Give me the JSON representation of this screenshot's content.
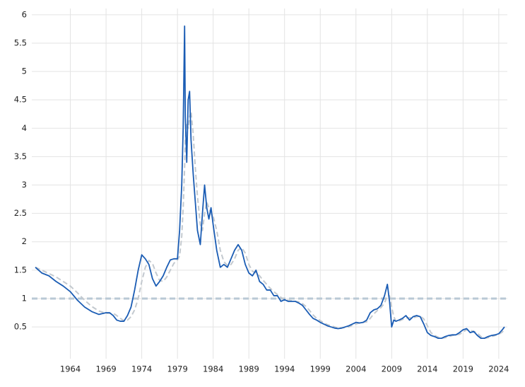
{
  "chart_data": {
    "type": "line",
    "x": [
      1959.1,
      1960,
      1961,
      1962,
      1963,
      1964,
      1965,
      1966,
      1967,
      1968,
      1969,
      1969.5,
      1970,
      1970.5,
      1971,
      1971.5,
      1972,
      1972.5,
      1973,
      1973.5,
      1974,
      1974.5,
      1975,
      1975.5,
      1976,
      1976.5,
      1977,
      1977.5,
      1978,
      1978.5,
      1979,
      1979.3,
      1979.6,
      1979.8,
      1980.0,
      1980.1,
      1980.3,
      1980.5,
      1980.7,
      1980.9,
      1981.2,
      1981.5,
      1981.8,
      1982.2,
      1982.5,
      1982.8,
      1983.1,
      1983.4,
      1983.7,
      1984,
      1984.5,
      1985,
      1985.5,
      1986,
      1986.5,
      1987,
      1987.5,
      1988,
      1988.5,
      1989,
      1989.5,
      1990,
      1990.5,
      1991,
      1991.5,
      1992,
      1992.5,
      1993,
      1993.5,
      1994,
      1994.5,
      1995,
      1995.5,
      1996,
      1996.5,
      1997,
      1997.5,
      1998,
      1998.5,
      1999,
      1999.5,
      2000,
      2000.5,
      2001,
      2001.5,
      2002,
      2002.5,
      2003,
      2003.5,
      2004,
      2004.5,
      2005,
      2005.5,
      2006,
      2006.5,
      2007,
      2007.5,
      2008,
      2008.4,
      2008.7,
      2009,
      2009.3,
      2009.6,
      2010,
      2010.5,
      2011,
      2011.5,
      2012,
      2012.5,
      2013,
      2013.5,
      2014,
      2014.5,
      2015,
      2015.5,
      2016,
      2016.5,
      2017,
      2017.5,
      2018,
      2018.5,
      2019,
      2019.5,
      2020,
      2020.5,
      2021,
      2021.5,
      2022,
      2022.5,
      2023,
      2023.5,
      2024,
      2024.5,
      2024.8
    ],
    "series": [
      {
        "color": "#c3c9cf",
        "dashed": true,
        "values": [
          1.55,
          1.5,
          1.44,
          1.38,
          1.3,
          1.22,
          1.1,
          0.97,
          0.86,
          0.78,
          0.74,
          0.74,
          0.74,
          0.7,
          0.65,
          0.61,
          0.62,
          0.68,
          0.8,
          1.0,
          1.3,
          1.55,
          1.67,
          1.62,
          1.45,
          1.32,
          1.3,
          1.38,
          1.5,
          1.62,
          1.68,
          1.75,
          2.1,
          2.6,
          3.3,
          3.8,
          4.1,
          4.0,
          4.2,
          4.3,
          3.9,
          3.3,
          2.8,
          2.3,
          2.2,
          2.5,
          2.7,
          2.6,
          2.5,
          2.45,
          2.2,
          1.85,
          1.65,
          1.58,
          1.6,
          1.7,
          1.85,
          1.9,
          1.8,
          1.6,
          1.48,
          1.45,
          1.4,
          1.32,
          1.25,
          1.18,
          1.12,
          1.07,
          1.02,
          0.98,
          0.97,
          0.96,
          0.95,
          0.94,
          0.91,
          0.86,
          0.79,
          0.71,
          0.65,
          0.61,
          0.57,
          0.54,
          0.52,
          0.5,
          0.48,
          0.48,
          0.49,
          0.5,
          0.53,
          0.55,
          0.57,
          0.58,
          0.59,
          0.65,
          0.73,
          0.79,
          0.84,
          0.92,
          1.05,
          1.05,
          0.85,
          0.68,
          0.6,
          0.6,
          0.63,
          0.66,
          0.66,
          0.66,
          0.68,
          0.69,
          0.64,
          0.52,
          0.4,
          0.35,
          0.32,
          0.3,
          0.31,
          0.33,
          0.35,
          0.36,
          0.37,
          0.41,
          0.45,
          0.44,
          0.42,
          0.39,
          0.33,
          0.3,
          0.31,
          0.33,
          0.35,
          0.37,
          0.41,
          0.46
        ]
      },
      {
        "color": "#1a5cb4",
        "dashed": false,
        "values": [
          1.55,
          1.45,
          1.4,
          1.3,
          1.22,
          1.12,
          0.97,
          0.85,
          0.77,
          0.72,
          0.75,
          0.75,
          0.7,
          0.62,
          0.6,
          0.6,
          0.7,
          0.85,
          1.15,
          1.5,
          1.77,
          1.7,
          1.6,
          1.35,
          1.22,
          1.3,
          1.4,
          1.55,
          1.68,
          1.7,
          1.7,
          2.2,
          3.0,
          4.0,
          5.8,
          4.2,
          3.4,
          4.5,
          4.65,
          3.8,
          3.2,
          2.7,
          2.2,
          1.95,
          2.5,
          3.0,
          2.6,
          2.4,
          2.6,
          2.3,
          1.85,
          1.55,
          1.6,
          1.55,
          1.7,
          1.85,
          1.95,
          1.85,
          1.6,
          1.45,
          1.4,
          1.5,
          1.3,
          1.25,
          1.15,
          1.15,
          1.05,
          1.05,
          0.95,
          0.98,
          0.95,
          0.95,
          0.95,
          0.92,
          0.88,
          0.8,
          0.72,
          0.65,
          0.62,
          0.58,
          0.55,
          0.52,
          0.5,
          0.48,
          0.47,
          0.48,
          0.5,
          0.52,
          0.55,
          0.58,
          0.57,
          0.58,
          0.62,
          0.75,
          0.8,
          0.82,
          0.88,
          1.05,
          1.25,
          0.95,
          0.5,
          0.62,
          0.6,
          0.62,
          0.65,
          0.7,
          0.62,
          0.68,
          0.7,
          0.68,
          0.55,
          0.4,
          0.35,
          0.33,
          0.3,
          0.3,
          0.33,
          0.35,
          0.36,
          0.36,
          0.4,
          0.45,
          0.47,
          0.4,
          0.42,
          0.35,
          0.3,
          0.3,
          0.33,
          0.35,
          0.36,
          0.38,
          0.45,
          0.5
        ]
      }
    ],
    "reference_line": {
      "value": 1,
      "color": "#b9c9d5"
    },
    "xlim": [
      1958.6,
      2025.2
    ],
    "xticks": [
      1964,
      1969,
      1974,
      1979,
      1984,
      1989,
      1994,
      1999,
      2004,
      2009,
      2014,
      2019,
      2024
    ],
    "ylim": [
      -0.06,
      6.11
    ],
    "yticks": [
      0.5,
      1,
      1.5,
      2,
      2.5,
      3,
      3.5,
      4,
      4.5,
      5,
      5.5,
      6
    ],
    "grid": true
  }
}
